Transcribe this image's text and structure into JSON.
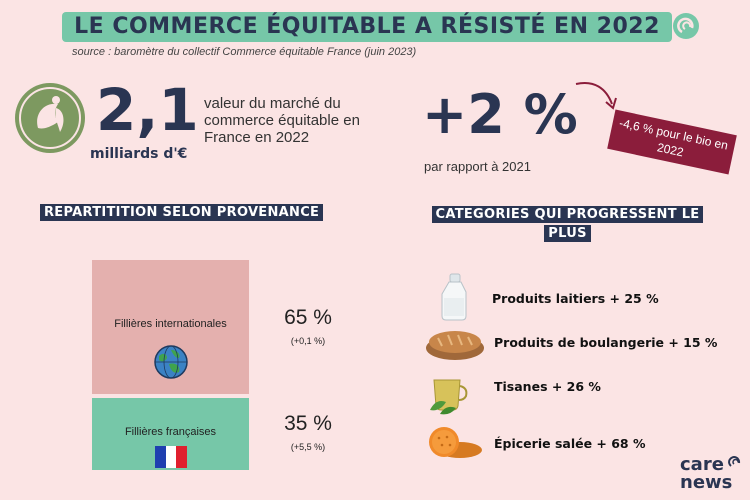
{
  "header": {
    "title": "LE COMMERCE ÉQUITABLE A RÉSISTÉ EN 2022",
    "source": "source : baromètre du collectif Commerce équitable France (juin 2023)"
  },
  "market": {
    "value": "2,1",
    "unit": "milliards d'€",
    "description": "valeur du marché du commerce équitable en France en 2022"
  },
  "growth": {
    "value": "+2 %",
    "caption": "par rapport à 2021",
    "bio_note": "-4,6 % pour le bio en 2022"
  },
  "provenance": {
    "heading": "REPARTITITION SELON PROVENANCE",
    "international": {
      "label": "Fillières internationales",
      "percent": "65 %",
      "change": "(+0,1 %)",
      "share": 65
    },
    "french": {
      "label": "Fillières françaises",
      "percent": "35 %",
      "change": "(+5,5 %)",
      "share": 35
    }
  },
  "categories": {
    "heading": "CATEGORIES QUI PROGRESSENT LE PLUS",
    "items": [
      {
        "label": "Produits laitiers + 25 %",
        "icon": "milk-bottle-icon"
      },
      {
        "label": "Produits de boulangerie + 15 %",
        "icon": "bread-icon"
      },
      {
        "label": "Tisanes + 26 %",
        "icon": "herbal-tea-icon"
      },
      {
        "label": "Épicerie salée + 68 %",
        "icon": "crackers-icon"
      }
    ]
  },
  "brand": {
    "line1": "care",
    "line2": "news"
  },
  "colors": {
    "background": "#fbe4e4",
    "accent_green": "#76c7a8",
    "navy": "#2a3552",
    "box_pink": "#e4b0ae",
    "tag_red": "#8b1d3b",
    "logo_green": "#7d9960"
  }
}
